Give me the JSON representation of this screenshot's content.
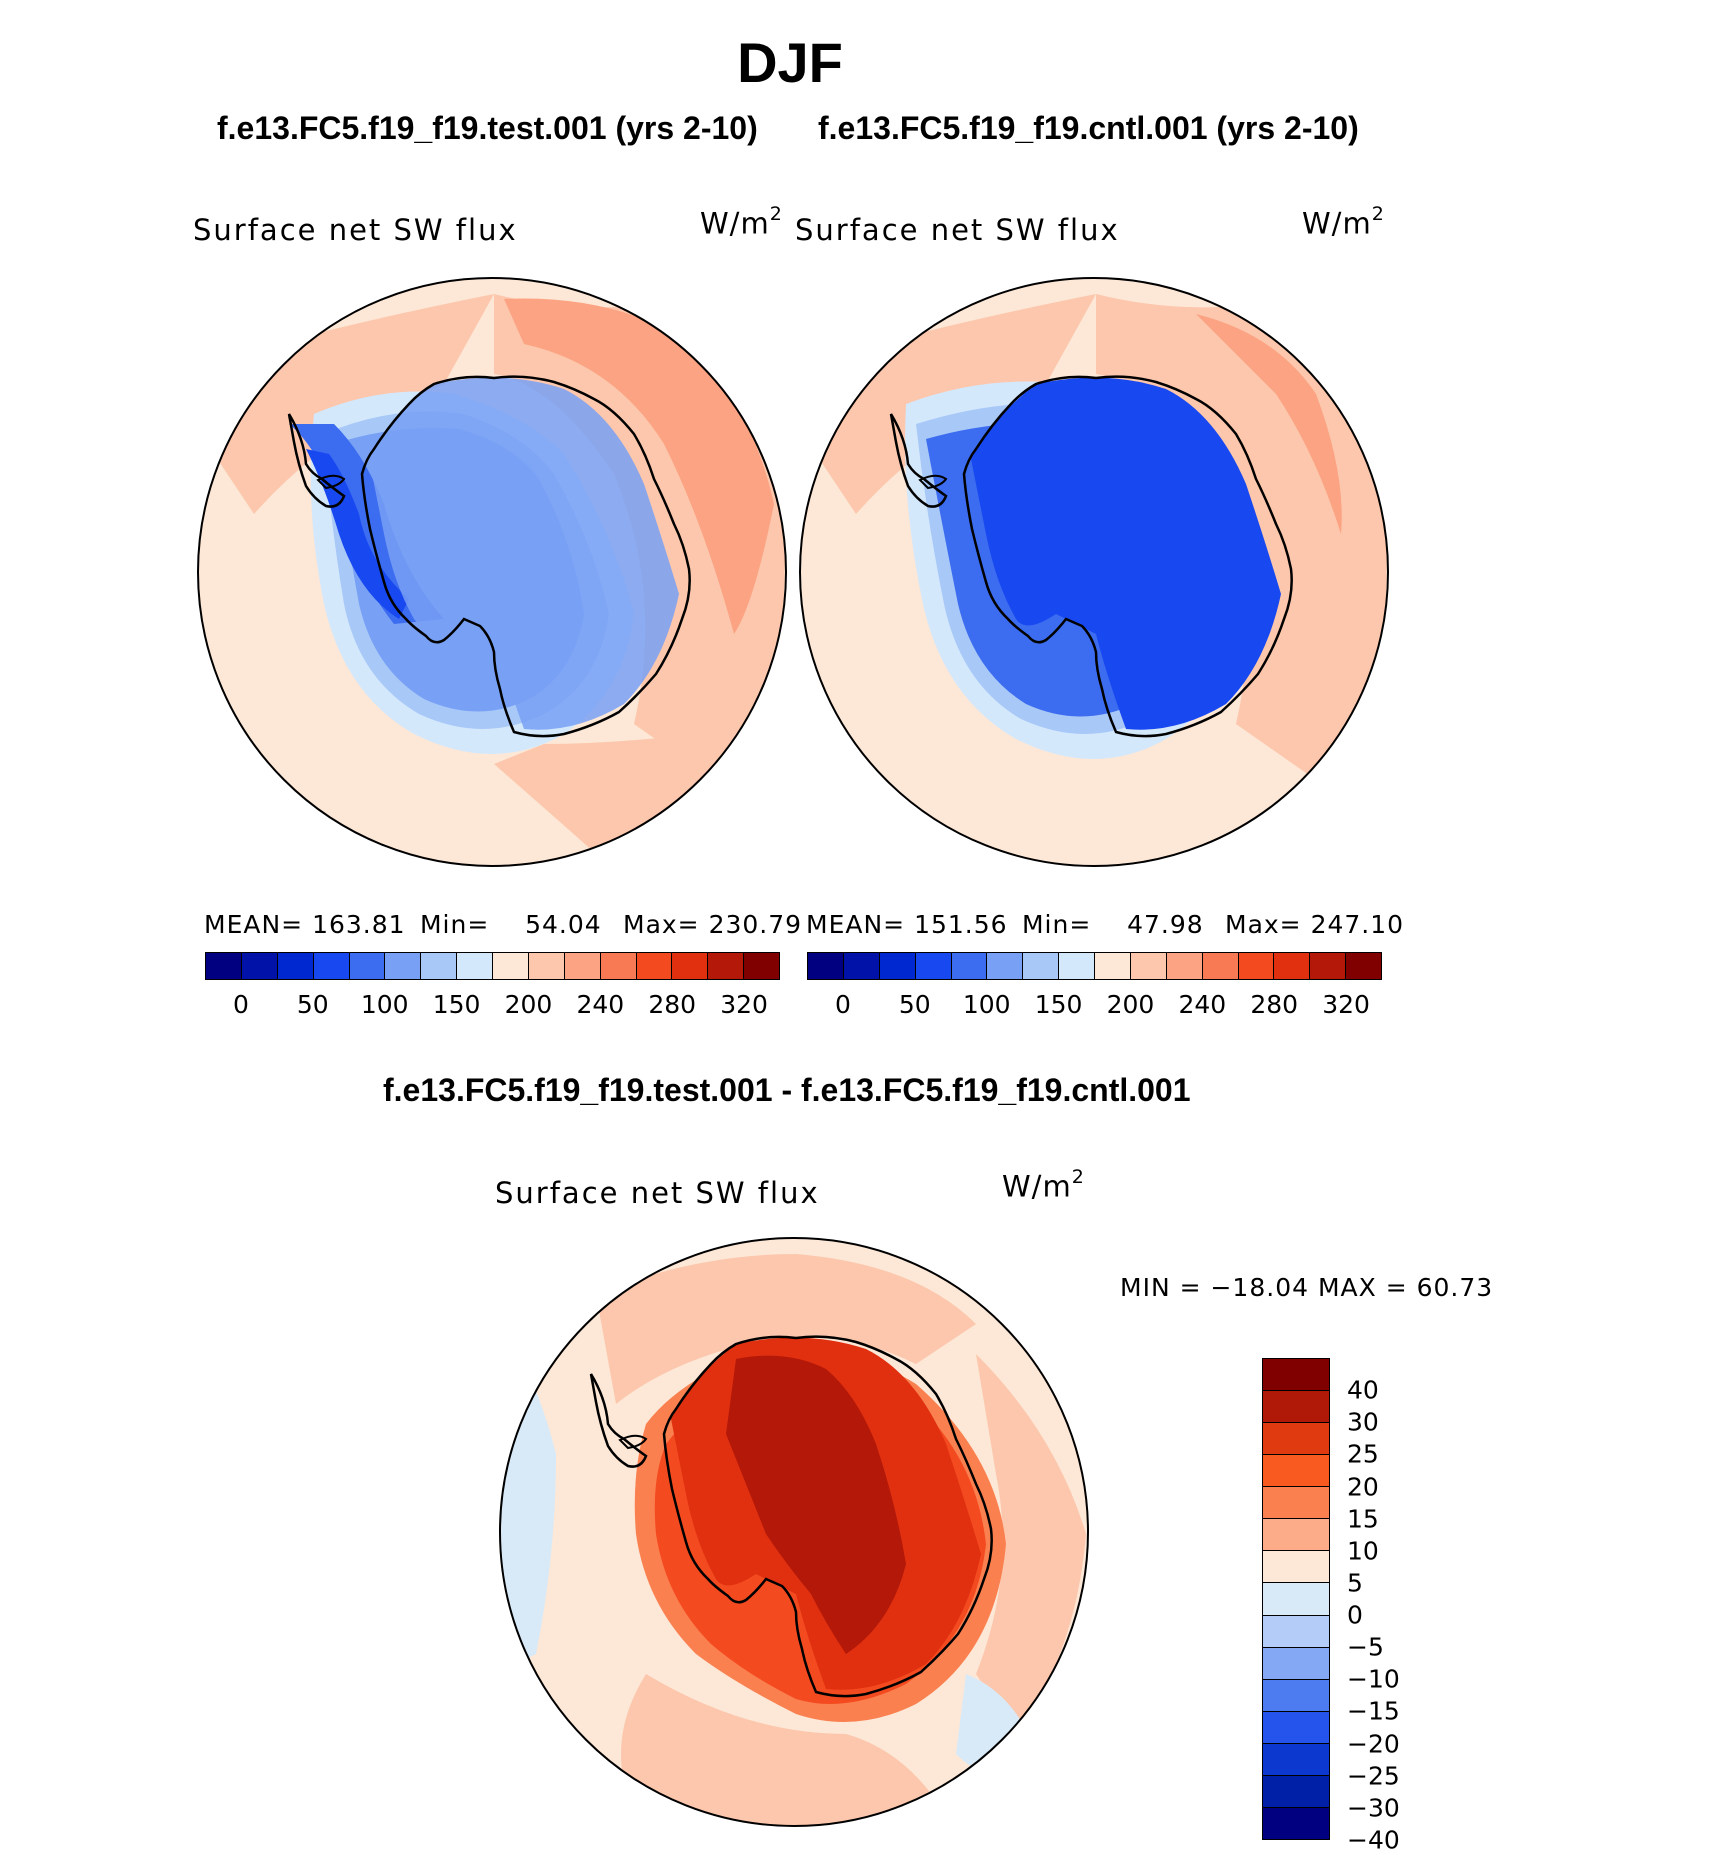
{
  "title": "DJF",
  "panels": {
    "test": {
      "case_title": "f.e13.FC5.f19_f19.test.001 (yrs 2-10)",
      "label": "Surface net SW flux",
      "units_base": "W/m",
      "units_exp": "2",
      "mean_label": "MEAN=",
      "mean": "163.81",
      "min_label": "Min=",
      "min": "54.04",
      "max_label": "Max=",
      "max": "230.79"
    },
    "cntl": {
      "case_title": "f.e13.FC5.f19_f19.cntl.001 (yrs 2-10)",
      "label": "Surface net SW flux",
      "units_base": "W/m",
      "units_exp": "2",
      "mean_label": "MEAN=",
      "mean": "151.56",
      "min_label": "Min=",
      "min": "47.98",
      "max_label": "Max=",
      "max": "247.10"
    },
    "diff": {
      "case_title": "f.e13.FC5.f19_f19.test.001 - f.e13.FC5.f19_f19.cntl.001",
      "label": "Surface net SW flux",
      "units_base": "W/m",
      "units_exp": "2",
      "minmax_text": "MIN = −18.04 MAX =   60.73"
    }
  },
  "colorbars": {
    "abs": {
      "colors": [
        "#000080",
        "#0012a8",
        "#0028d0",
        "#1848f0",
        "#3c6cf0",
        "#78a0f4",
        "#a8c8f8",
        "#d4e8fc",
        "#fde7d6",
        "#fcc7ac",
        "#fba382",
        "#f87a54",
        "#f44a20",
        "#e03010",
        "#b41808",
        "#800000"
      ],
      "ticks": [
        "0",
        "50",
        "100",
        "150",
        "200",
        "240",
        "280",
        "320"
      ]
    },
    "diff": {
      "colors": [
        "#800000",
        "#b01808",
        "#e03a10",
        "#f85a20",
        "#fa8050",
        "#fcac88",
        "#fde8d8",
        "#d8eaf8",
        "#b4ccf8",
        "#84a8f4",
        "#4c7cf0",
        "#2454ec",
        "#0c38d0",
        "#0020a8",
        "#000080"
      ],
      "ticks": [
        "40",
        "30",
        "25",
        "20",
        "15",
        "10",
        "5",
        "0",
        "−5",
        "−10",
        "−15",
        "−20",
        "−25",
        "−30",
        "−40"
      ]
    }
  },
  "map_colors": {
    "background_light": "#fde7d6",
    "background_mid": "#fcc7ac",
    "background_strong": "#fba382",
    "blue_light": "#d4e8fc",
    "blue_pale": "#a8c8f8",
    "blue_mid": "#78a0f4",
    "blue_strong": "#3c6cf0",
    "blue_deep": "#1848f0",
    "red_deep": "#b41808",
    "red_strong": "#e03010",
    "red_mid": "#f44a20",
    "coastline": "#000000"
  }
}
